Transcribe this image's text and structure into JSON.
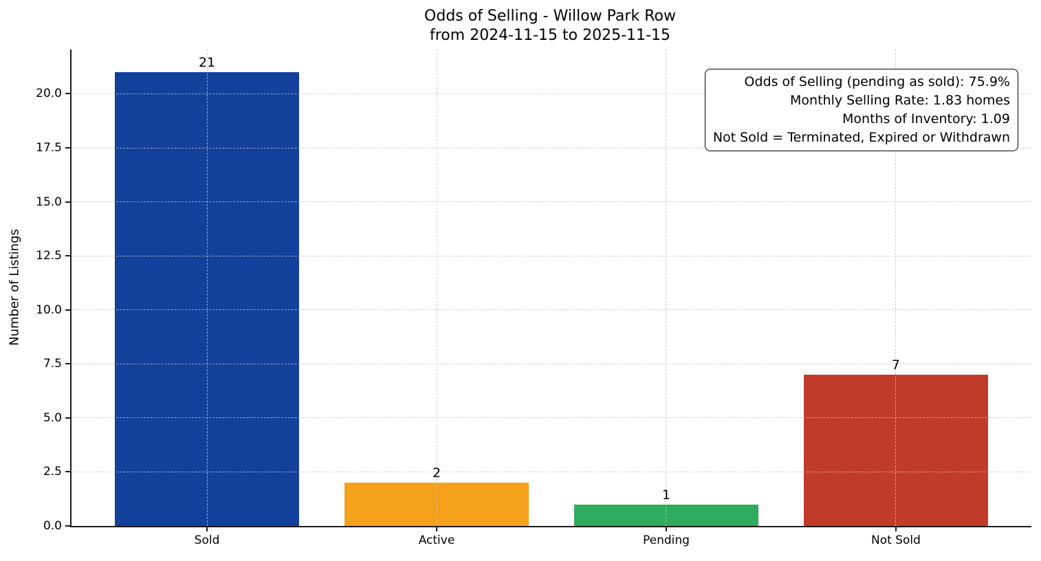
{
  "title": {
    "line1": "Odds of Selling - Willow Park Row",
    "line2": "from 2024-11-15 to 2025-11-15"
  },
  "chart_data": {
    "type": "bar",
    "title": "Odds of Selling - Willow Park Row\nfrom 2024-11-15 to 2025-11-15",
    "categories": [
      "Sold",
      "Active",
      "Pending",
      "Not Sold"
    ],
    "values": [
      21,
      2,
      1,
      7
    ],
    "value_labels": [
      "21",
      "2",
      "1",
      "7"
    ],
    "bar_colors": [
      "#12409a",
      "#f5a11b",
      "#2eab5d",
      "#c23b2a"
    ],
    "xlabel": "",
    "ylabel": "Number of Listings",
    "ylim": [
      0,
      22.05
    ],
    "xlim": [
      -0.59,
      3.59
    ],
    "bar_width": 0.8,
    "yticks": [
      0.0,
      2.5,
      5.0,
      7.5,
      10.0,
      12.5,
      15.0,
      17.5,
      20.0
    ],
    "ytick_labels": [
      "0.0",
      "2.5",
      "5.0",
      "7.5",
      "10.0",
      "12.5",
      "15.0",
      "17.5",
      "20.0"
    ],
    "grid": "dashed, light gray, horizontal and vertical, drawn over bars",
    "legend": "none",
    "annotation": {
      "position": "top-right",
      "lines": [
        "Odds of Selling (pending as sold): 75.9%",
        "Monthly Selling Rate: 1.83 homes",
        "Months of Inventory: 1.09",
        "Not Sold = Terminated, Expired or Withdrawn"
      ]
    }
  },
  "colors": {
    "background": "#ffffff",
    "spine": "#1a1a1a",
    "grid": "#c4c4c4",
    "text": "#000000"
  }
}
